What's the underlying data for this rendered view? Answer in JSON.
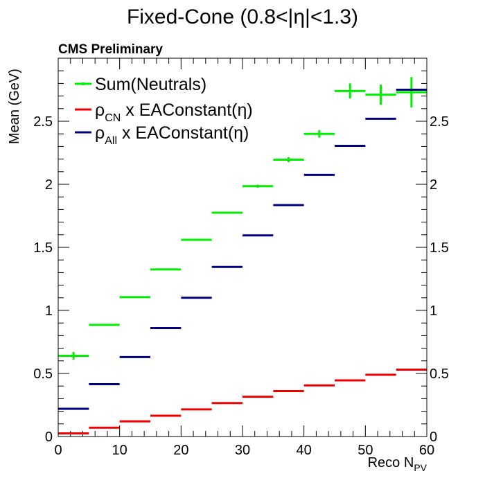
{
  "chart_data": {
    "type": "scatter",
    "title": "Fixed-Cone (0.8<|η|<1.3)",
    "annotation": "CMS Preliminary",
    "xlabel": "Reco N",
    "xlabel_sub": "PV",
    "ylabel": "Mean (GeV)",
    "xlim": [
      0,
      60
    ],
    "ylim": [
      0,
      3.0
    ],
    "x_ticks": [
      "0",
      "10",
      "20",
      "30",
      "40",
      "50",
      "60"
    ],
    "y_ticks": [
      "0",
      "0.5",
      "1",
      "1.5",
      "2",
      "2.5"
    ],
    "bin_width": 5,
    "legend_position": "top-left",
    "series": [
      {
        "name": "Sum(Neutrals)",
        "legend_main": "Sum(Neutrals)",
        "legend_sub": "",
        "legend_tail": "",
        "color": "#00ee00",
        "x": [
          2.5,
          7.5,
          12.5,
          17.5,
          22.5,
          27.5,
          32.5,
          37.5,
          42.5,
          47.5,
          52.5,
          57.5
        ],
        "values": [
          0.64,
          0.885,
          1.105,
          1.325,
          1.56,
          1.775,
          1.985,
          2.195,
          2.4,
          2.74,
          2.71,
          2.73
        ],
        "errors": [
          0.03,
          0.008,
          0.005,
          0.005,
          0.005,
          0.006,
          0.012,
          0.02,
          0.03,
          0.06,
          0.08,
          0.12
        ]
      },
      {
        "name": "ρCN x EAConstant(η)",
        "legend_main": "ρ",
        "legend_sub": "CN",
        "legend_tail": "x EAConstant(η)",
        "color": "#ee0000",
        "x": [
          2.5,
          7.5,
          12.5,
          17.5,
          22.5,
          27.5,
          32.5,
          37.5,
          42.5,
          47.5,
          52.5,
          57.5
        ],
        "values": [
          0.025,
          0.07,
          0.12,
          0.165,
          0.215,
          0.265,
          0.315,
          0.36,
          0.405,
          0.445,
          0.49,
          0.53
        ],
        "errors": [
          0,
          0,
          0,
          0,
          0,
          0,
          0,
          0,
          0,
          0,
          0,
          0
        ]
      },
      {
        "name": "ρAll x EAConstant(η)",
        "legend_main": "ρ",
        "legend_sub": "All",
        "legend_tail": "x EAConstant(η)",
        "color": "#000080",
        "x": [
          2.5,
          7.5,
          12.5,
          17.5,
          22.5,
          27.5,
          32.5,
          37.5,
          42.5,
          47.5,
          52.5,
          57.5
        ],
        "values": [
          0.22,
          0.415,
          0.63,
          0.86,
          1.1,
          1.345,
          1.595,
          1.835,
          2.075,
          2.305,
          2.52,
          2.75
        ],
        "errors": [
          0,
          0,
          0,
          0,
          0,
          0,
          0,
          0,
          0,
          0,
          0,
          0
        ]
      }
    ]
  }
}
